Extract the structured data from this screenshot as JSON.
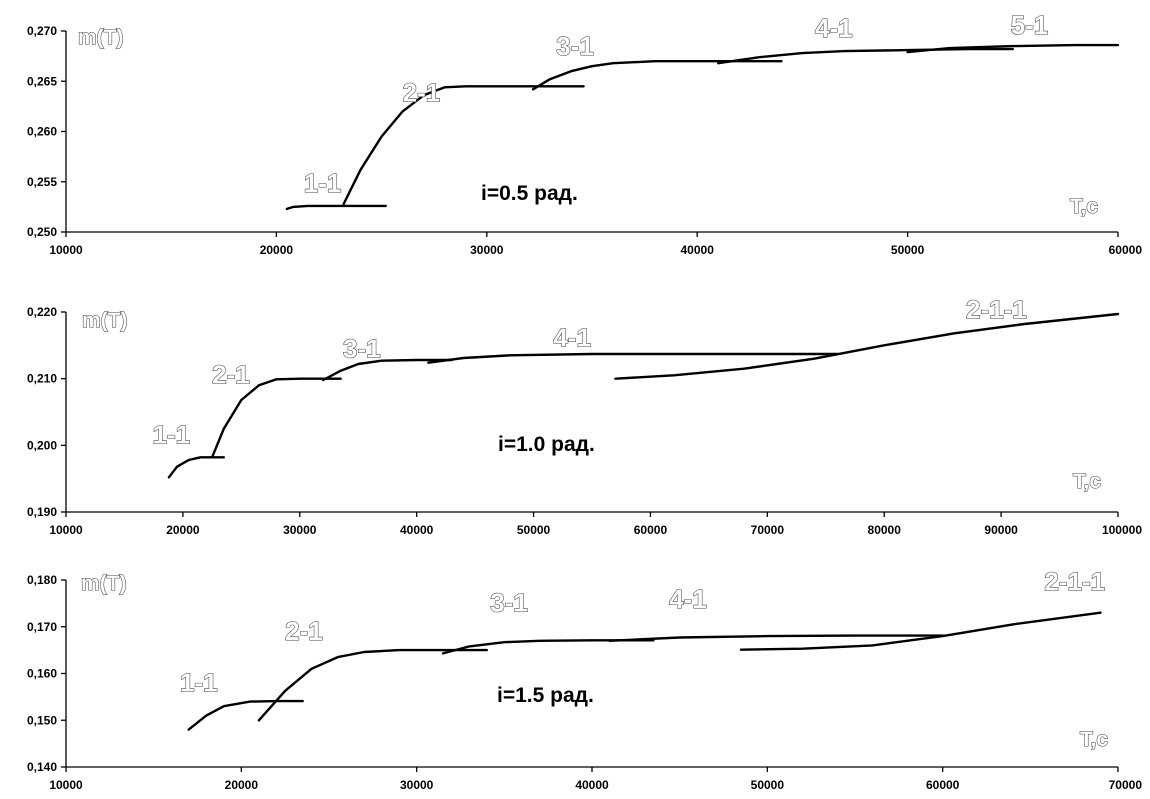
{
  "chart_data": [
    {
      "type": "line",
      "annotation": "i=0.5 рад.",
      "ylabel": "m(T)",
      "xlabel": "T,c",
      "xlim": [
        10000,
        60000
      ],
      "ylim": [
        0.25,
        0.27
      ],
      "xticks": [
        "10000",
        "20000",
        "30000",
        "40000",
        "50000",
        "60000"
      ],
      "yticks": [
        "0,250",
        "0,255",
        "0,260",
        "0,265",
        "0,270"
      ],
      "series": [
        {
          "name": "1-1",
          "x": [
            20500,
            20800,
            21500,
            23000,
            25200
          ],
          "y": [
            0.2523,
            0.2525,
            0.2526,
            0.2526,
            0.2526
          ]
        },
        {
          "name": "2-1",
          "x": [
            23200,
            24000,
            25000,
            26000,
            27000,
            28000,
            29000,
            32000,
            34600
          ],
          "y": [
            0.2528,
            0.2562,
            0.2595,
            0.262,
            0.2636,
            0.2644,
            0.2645,
            0.2645,
            0.2645
          ]
        },
        {
          "name": "3-1",
          "x": [
            32200,
            33000,
            34000,
            35000,
            36000,
            37000,
            38000,
            40000,
            42000,
            44000
          ],
          "y": [
            0.2642,
            0.2652,
            0.266,
            0.2665,
            0.2668,
            0.2669,
            0.267,
            0.267,
            0.267,
            0.267
          ]
        },
        {
          "name": "4-1",
          "x": [
            41000,
            43000,
            45000,
            47000,
            50000,
            53000,
            55000
          ],
          "y": [
            0.2668,
            0.2674,
            0.2678,
            0.268,
            0.2681,
            0.2682,
            0.2682
          ]
        },
        {
          "name": "5-1",
          "x": [
            50000,
            52000,
            55000,
            58000,
            60000
          ],
          "y": [
            0.2679,
            0.2683,
            0.2685,
            0.2686,
            0.2686
          ]
        }
      ],
      "labels": [
        {
          "text": "1-1",
          "x": 21300,
          "y": 0.254
        },
        {
          "text": "2-1",
          "x": 26000,
          "y": 0.263
        },
        {
          "text": "3-1",
          "x": 33300,
          "y": 0.2676
        },
        {
          "text": "4-1",
          "x": 45600,
          "y": 0.2694
        },
        {
          "text": "5-1",
          "x": 54900,
          "y": 0.2697
        }
      ]
    },
    {
      "type": "line",
      "annotation": "i=1.0 рад.",
      "ylabel": "m(T)",
      "xlabel": "T,c",
      "xlim": [
        10000,
        100000
      ],
      "ylim": [
        0.19,
        0.22
      ],
      "xticks": [
        "10000",
        "20000",
        "30000",
        "40000",
        "50000",
        "60000",
        "70000",
        "80000",
        "90000",
        "100000"
      ],
      "yticks": [
        "0,190",
        "0,200",
        "0,210",
        "0,220"
      ],
      "series": [
        {
          "name": "1-1",
          "x": [
            18800,
            19500,
            20500,
            21500,
            23500
          ],
          "y": [
            0.1952,
            0.1968,
            0.1978,
            0.1982,
            0.1982
          ]
        },
        {
          "name": "2-1",
          "x": [
            22500,
            23500,
            25000,
            26500,
            28000,
            30000,
            32000,
            33500
          ],
          "y": [
            0.1982,
            0.2025,
            0.2068,
            0.209,
            0.2099,
            0.21,
            0.21,
            0.21
          ]
        },
        {
          "name": "3-1",
          "x": [
            32000,
            33500,
            35000,
            37000,
            40000,
            43000
          ],
          "y": [
            0.2098,
            0.2112,
            0.2122,
            0.2127,
            0.2128,
            0.2128
          ]
        },
        {
          "name": "4-1",
          "x": [
            41000,
            44000,
            48000,
            55000,
            65000,
            76000
          ],
          "y": [
            0.2124,
            0.2131,
            0.2135,
            0.2137,
            0.2137,
            0.2137
          ]
        },
        {
          "name": "2-1-1",
          "x": [
            57000,
            62000,
            68000,
            74000,
            80000,
            86000,
            92000,
            100000
          ],
          "y": [
            0.21,
            0.2105,
            0.2115,
            0.213,
            0.215,
            0.2168,
            0.2182,
            0.2197
          ]
        }
      ],
      "labels": [
        {
          "text": "1-1",
          "x": 17400,
          "y": 0.2003
        },
        {
          "text": "2-1",
          "x": 22500,
          "y": 0.2093
        },
        {
          "text": "3-1",
          "x": 33700,
          "y": 0.2132
        },
        {
          "text": "4-1",
          "x": 51700,
          "y": 0.2148
        },
        {
          "text": "2-1-1",
          "x": 87000,
          "y": 0.219
        }
      ]
    },
    {
      "type": "line",
      "annotation": "i=1.5 рад.",
      "ylabel": "m(T)",
      "xlabel": "T,c",
      "xlim": [
        10000,
        70000
      ],
      "ylim": [
        0.14,
        0.18
      ],
      "xticks": [
        "10000",
        "20000",
        "30000",
        "40000",
        "50000",
        "60000",
        "70000"
      ],
      "yticks": [
        "0,140",
        "0,150",
        "0,160",
        "0,170",
        "0,180"
      ],
      "series": [
        {
          "name": "1-1",
          "x": [
            17000,
            18000,
            19000,
            20500,
            22000,
            23500
          ],
          "y": [
            0.148,
            0.151,
            0.153,
            0.154,
            0.1541,
            0.1541
          ]
        },
        {
          "name": "2-1",
          "x": [
            21000,
            22500,
            24000,
            25500,
            27000,
            29000,
            31000,
            34000
          ],
          "y": [
            0.15,
            0.1563,
            0.161,
            0.1635,
            0.1646,
            0.165,
            0.165,
            0.165
          ]
        },
        {
          "name": "3-1",
          "x": [
            31500,
            33000,
            35000,
            37000,
            40000,
            43500
          ],
          "y": [
            0.1643,
            0.1658,
            0.1667,
            0.167,
            0.1671,
            0.1671
          ]
        },
        {
          "name": "4-1",
          "x": [
            41000,
            45000,
            50000,
            55000,
            60000
          ],
          "y": [
            0.167,
            0.1677,
            0.168,
            0.1681,
            0.1681
          ]
        },
        {
          "name": "2-1-1",
          "x": [
            48500,
            52000,
            56000,
            60000,
            64000,
            69000
          ],
          "y": [
            0.1651,
            0.1653,
            0.166,
            0.168,
            0.1705,
            0.173
          ]
        }
      ],
      "labels": [
        {
          "text": "1-1",
          "x": 16500,
          "y": 0.1562
        },
        {
          "text": "2-1",
          "x": 22500,
          "y": 0.1672
        },
        {
          "text": "3-1",
          "x": 34200,
          "y": 0.1733
        },
        {
          "text": "4-1",
          "x": 44400,
          "y": 0.174
        },
        {
          "text": "2-1-1",
          "x": 65800,
          "y": 0.1778
        }
      ]
    }
  ]
}
